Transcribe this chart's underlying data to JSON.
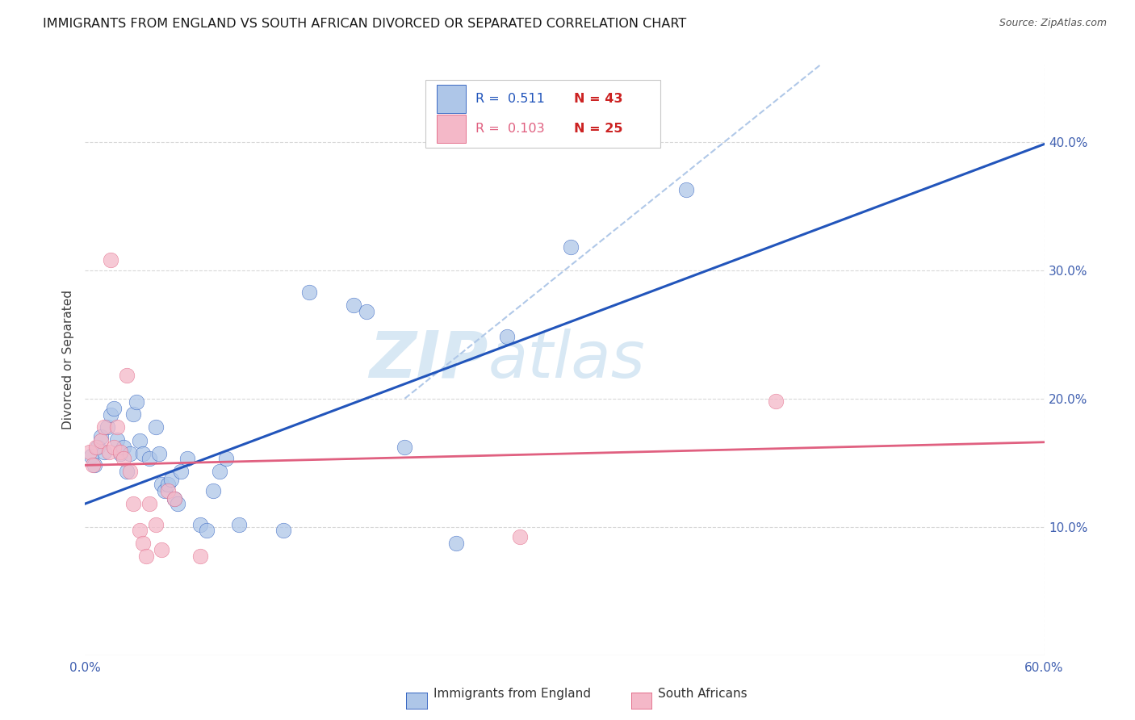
{
  "title": "IMMIGRANTS FROM ENGLAND VS SOUTH AFRICAN DIVORCED OR SEPARATED CORRELATION CHART",
  "source": "Source: ZipAtlas.com",
  "ylabel": "Divorced or Separated",
  "xlim": [
    0.0,
    0.6
  ],
  "ylim": [
    0.0,
    0.46
  ],
  "x_ticks": [
    0.0,
    0.6
  ],
  "x_tick_labels": [
    "0.0%",
    "60.0%"
  ],
  "y_ticks_right": [
    0.1,
    0.2,
    0.3,
    0.4
  ],
  "y_tick_labels_right": [
    "10.0%",
    "20.0%",
    "30.0%",
    "40.0%"
  ],
  "blue_scatter": [
    [
      0.004,
      0.155
    ],
    [
      0.006,
      0.148
    ],
    [
      0.008,
      0.162
    ],
    [
      0.01,
      0.17
    ],
    [
      0.012,
      0.158
    ],
    [
      0.014,
      0.178
    ],
    [
      0.016,
      0.187
    ],
    [
      0.018,
      0.192
    ],
    [
      0.02,
      0.168
    ],
    [
      0.022,
      0.157
    ],
    [
      0.024,
      0.162
    ],
    [
      0.026,
      0.143
    ],
    [
      0.028,
      0.157
    ],
    [
      0.03,
      0.188
    ],
    [
      0.032,
      0.197
    ],
    [
      0.034,
      0.167
    ],
    [
      0.036,
      0.157
    ],
    [
      0.04,
      0.153
    ],
    [
      0.044,
      0.178
    ],
    [
      0.046,
      0.157
    ],
    [
      0.048,
      0.133
    ],
    [
      0.05,
      0.128
    ],
    [
      0.052,
      0.133
    ],
    [
      0.054,
      0.137
    ],
    [
      0.056,
      0.122
    ],
    [
      0.058,
      0.118
    ],
    [
      0.06,
      0.143
    ],
    [
      0.064,
      0.153
    ],
    [
      0.072,
      0.102
    ],
    [
      0.076,
      0.097
    ],
    [
      0.08,
      0.128
    ],
    [
      0.084,
      0.143
    ],
    [
      0.088,
      0.153
    ],
    [
      0.096,
      0.102
    ],
    [
      0.124,
      0.097
    ],
    [
      0.14,
      0.283
    ],
    [
      0.168,
      0.273
    ],
    [
      0.176,
      0.268
    ],
    [
      0.2,
      0.162
    ],
    [
      0.232,
      0.087
    ],
    [
      0.264,
      0.248
    ],
    [
      0.304,
      0.318
    ],
    [
      0.376,
      0.363
    ]
  ],
  "pink_scatter": [
    [
      0.003,
      0.158
    ],
    [
      0.005,
      0.148
    ],
    [
      0.007,
      0.162
    ],
    [
      0.01,
      0.167
    ],
    [
      0.012,
      0.178
    ],
    [
      0.015,
      0.158
    ],
    [
      0.016,
      0.308
    ],
    [
      0.018,
      0.162
    ],
    [
      0.02,
      0.178
    ],
    [
      0.022,
      0.158
    ],
    [
      0.024,
      0.153
    ],
    [
      0.026,
      0.218
    ],
    [
      0.028,
      0.143
    ],
    [
      0.03,
      0.118
    ],
    [
      0.034,
      0.097
    ],
    [
      0.036,
      0.087
    ],
    [
      0.038,
      0.077
    ],
    [
      0.04,
      0.118
    ],
    [
      0.044,
      0.102
    ],
    [
      0.048,
      0.082
    ],
    [
      0.052,
      0.128
    ],
    [
      0.056,
      0.122
    ],
    [
      0.072,
      0.077
    ],
    [
      0.272,
      0.092
    ],
    [
      0.432,
      0.198
    ]
  ],
  "blue_line_x": [
    0.0,
    0.6
  ],
  "blue_line_y_intercept": 0.118,
  "blue_line_slope": 0.467,
  "pink_line_x": [
    0.0,
    0.6
  ],
  "pink_line_y_intercept": 0.148,
  "pink_line_slope": 0.03,
  "dashed_line_x": [
    0.2,
    0.6
  ],
  "dashed_line_y": [
    0.2,
    0.6
  ],
  "scatter_blue_color": "#aec6e8",
  "scatter_pink_color": "#f4b8c8",
  "line_blue_color": "#2255bb",
  "line_pink_color": "#e06080",
  "dashed_line_color": "#b0c8e8",
  "watermark_zip": "ZIP",
  "watermark_atlas": "atlas",
  "watermark_color": "#d8e8f4",
  "background_color": "#ffffff",
  "grid_color": "#d8d8d8",
  "title_color": "#1a1a1a",
  "source_color": "#555555",
  "axis_color": "#4060b0",
  "ylabel_color": "#404040"
}
